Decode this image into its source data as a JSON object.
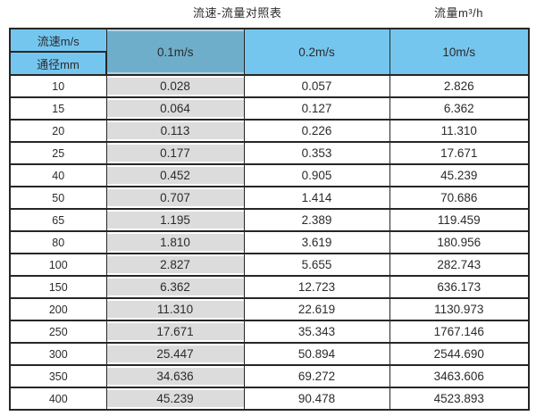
{
  "header": {
    "title": "流速-流量对照表",
    "unit_label": "流量m³/h"
  },
  "table": {
    "corner": {
      "top": "流速m/s",
      "bottom": "通径mm"
    },
    "columns": [
      "0.1m/s",
      "0.2m/s",
      "10m/s"
    ],
    "rows": [
      {
        "diameter": "10",
        "values": [
          "0.028",
          "0.057",
          "2.826"
        ]
      },
      {
        "diameter": "15",
        "values": [
          "0.064",
          "0.127",
          "6.362"
        ]
      },
      {
        "diameter": "20",
        "values": [
          "0.113",
          "0.226",
          "11.310"
        ]
      },
      {
        "diameter": "25",
        "values": [
          "0.177",
          "0.353",
          "17.671"
        ]
      },
      {
        "diameter": "40",
        "values": [
          "0.452",
          "0.905",
          "45.239"
        ]
      },
      {
        "diameter": "50",
        "values": [
          "0.707",
          "1.414",
          "70.686"
        ]
      },
      {
        "diameter": "65",
        "values": [
          "1.195",
          "2.389",
          "119.459"
        ]
      },
      {
        "diameter": "80",
        "values": [
          "1.810",
          "3.619",
          "180.956"
        ]
      },
      {
        "diameter": "100",
        "values": [
          "2.827",
          "5.655",
          "282.743"
        ]
      },
      {
        "diameter": "150",
        "values": [
          "6.362",
          "12.723",
          "636.173"
        ]
      },
      {
        "diameter": "200",
        "values": [
          "11.310",
          "22.619",
          "1130.973"
        ]
      },
      {
        "diameter": "250",
        "values": [
          "17.671",
          "35.343",
          "1767.146"
        ]
      },
      {
        "diameter": "300",
        "values": [
          "25.447",
          "50.894",
          "2544.690"
        ]
      },
      {
        "diameter": "350",
        "values": [
          "34.636",
          "69.272",
          "3463.606"
        ]
      },
      {
        "diameter": "400",
        "values": [
          "45.239",
          "90.478",
          "4523.893"
        ]
      }
    ]
  },
  "colors": {
    "header_blue": "#74C6EF",
    "highlight_blue": "#6FAECB",
    "highlight_gray": "#DCDCDC",
    "border": "#262626",
    "text": "#2B2B2B",
    "page_bg": "#FFFFFF"
  },
  "chart_data": {
    "type": "table",
    "title": "流速-流量对照表",
    "unit": "流量m³/h",
    "columns": [
      "通径mm",
      "0.1m/s",
      "0.2m/s",
      "10m/s"
    ],
    "rows": [
      [
        10,
        0.028,
        0.057,
        2.826
      ],
      [
        15,
        0.064,
        0.127,
        6.362
      ],
      [
        20,
        0.113,
        0.226,
        11.31
      ],
      [
        25,
        0.177,
        0.353,
        17.671
      ],
      [
        40,
        0.452,
        0.905,
        45.239
      ],
      [
        50,
        0.707,
        1.414,
        70.686
      ],
      [
        65,
        1.195,
        2.389,
        119.459
      ],
      [
        80,
        1.81,
        3.619,
        180.956
      ],
      [
        100,
        2.827,
        5.655,
        282.743
      ],
      [
        150,
        6.362,
        12.723,
        636.173
      ],
      [
        200,
        11.31,
        22.619,
        1130.973
      ],
      [
        250,
        17.671,
        35.343,
        1767.146
      ],
      [
        300,
        25.447,
        50.894,
        2544.69
      ],
      [
        350,
        34.636,
        69.272,
        3463.606
      ],
      [
        400,
        45.239,
        90.478,
        4523.893
      ]
    ]
  }
}
